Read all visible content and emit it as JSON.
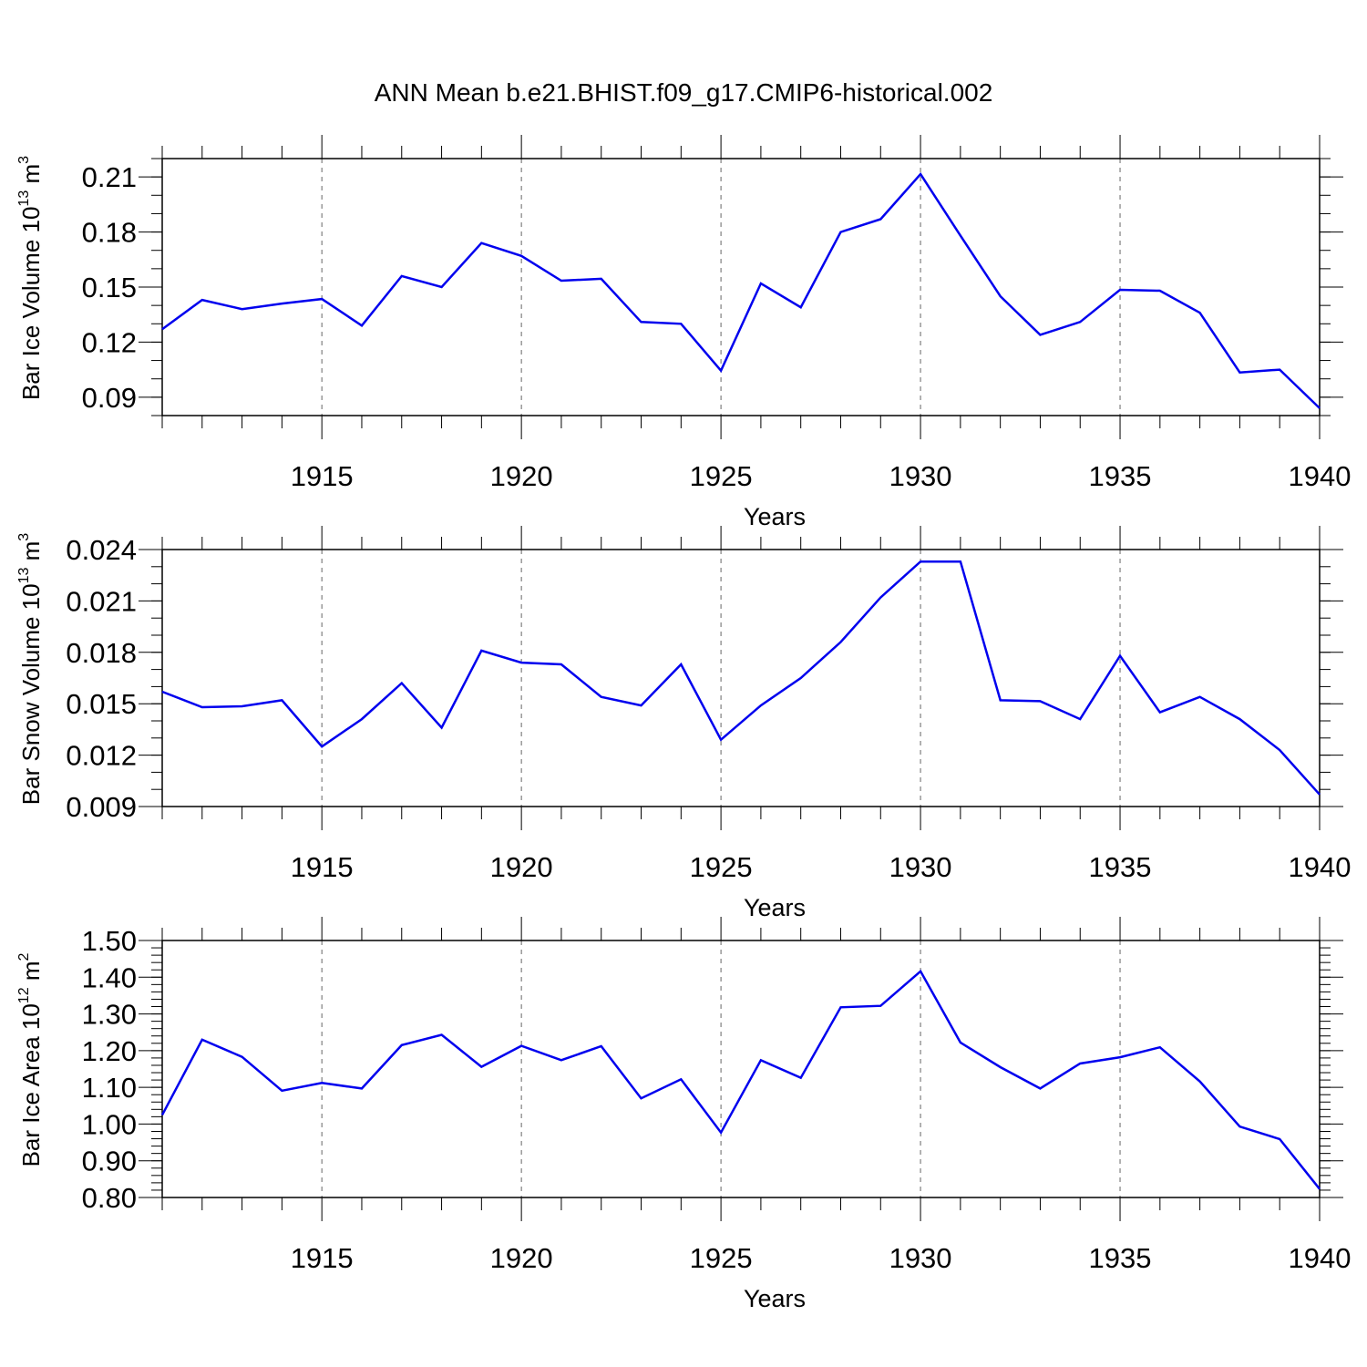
{
  "figure": {
    "title": "ANN Mean b.e21.BHIST.f09_g17.CMIP6-historical.002"
  },
  "chart_data": [
    {
      "type": "line",
      "id": "ice-volume",
      "ylabel": "Bar Ice Volume 10",
      "ylabel_exp": "13",
      "ylabel_unit": " m",
      "ylabel_unit_exp": "3",
      "xlabel": "Years",
      "xlim": [
        1911,
        1940
      ],
      "ylim": [
        0.08,
        0.22
      ],
      "yticks": [
        0.09,
        0.12,
        0.15,
        0.18,
        0.21
      ],
      "ytick_labels": [
        "0.09",
        "0.12",
        "0.15",
        "0.18",
        "0.21"
      ],
      "ytick_minor_step": 0.01,
      "xticks": [
        1915,
        1920,
        1925,
        1930,
        1935,
        1940
      ],
      "xtick_labels": [
        "1915",
        "1920",
        "1925",
        "1930",
        "1935",
        "1940"
      ],
      "grid_x": true,
      "line_color": "#0000ee",
      "x": [
        1911,
        1912,
        1913,
        1914,
        1915,
        1916,
        1917,
        1918,
        1919,
        1920,
        1921,
        1922,
        1923,
        1924,
        1925,
        1926,
        1927,
        1928,
        1929,
        1930,
        1931,
        1932,
        1933,
        1934,
        1935,
        1936,
        1937,
        1938,
        1939,
        1940
      ],
      "y": [
        0.127,
        0.143,
        0.138,
        0.141,
        0.1435,
        0.129,
        0.156,
        0.15,
        0.174,
        0.167,
        0.1535,
        0.1545,
        0.131,
        0.13,
        0.1045,
        0.152,
        0.139,
        0.18,
        0.187,
        0.2115,
        0.178,
        0.145,
        0.124,
        0.131,
        0.1485,
        0.148,
        0.136,
        0.1035,
        0.105,
        0.084
      ]
    },
    {
      "type": "line",
      "id": "snow-volume",
      "ylabel": "Bar Snow Volume 10",
      "ylabel_exp": "13",
      "ylabel_unit": " m",
      "ylabel_unit_exp": "3",
      "xlabel": "Years",
      "xlim": [
        1911,
        1940
      ],
      "ylim": [
        0.009,
        0.024
      ],
      "yticks": [
        0.009,
        0.012,
        0.015,
        0.018,
        0.021,
        0.024
      ],
      "ytick_labels": [
        "0.009",
        "0.012",
        "0.015",
        "0.018",
        "0.021",
        "0.024"
      ],
      "ytick_minor_step": 0.001,
      "xticks": [
        1915,
        1920,
        1925,
        1930,
        1935,
        1940
      ],
      "xtick_labels": [
        "1915",
        "1920",
        "1925",
        "1930",
        "1935",
        "1940"
      ],
      "grid_x": true,
      "line_color": "#0000ee",
      "x": [
        1911,
        1912,
        1913,
        1914,
        1915,
        1916,
        1917,
        1918,
        1919,
        1920,
        1921,
        1922,
        1923,
        1924,
        1925,
        1926,
        1927,
        1928,
        1929,
        1930,
        1931,
        1932,
        1933,
        1934,
        1935,
        1936,
        1937,
        1938,
        1939,
        1940
      ],
      "y": [
        0.0157,
        0.0148,
        0.01485,
        0.0152,
        0.0125,
        0.0141,
        0.0162,
        0.0136,
        0.0181,
        0.0174,
        0.0173,
        0.0154,
        0.0149,
        0.0173,
        0.0129,
        0.0149,
        0.0165,
        0.0186,
        0.0212,
        0.0233,
        0.0233,
        0.0152,
        0.01515,
        0.0141,
        0.0178,
        0.0145,
        0.0154,
        0.0141,
        0.0123,
        0.0097
      ]
    },
    {
      "type": "line",
      "id": "ice-area",
      "ylabel": "Bar Ice Area 10",
      "ylabel_exp": "12",
      "ylabel_unit": " m",
      "ylabel_unit_exp": "2",
      "xlabel": "Years",
      "xlim": [
        1911,
        1940
      ],
      "ylim": [
        0.8,
        1.5
      ],
      "yticks": [
        0.8,
        0.9,
        1.0,
        1.1,
        1.2,
        1.3,
        1.4,
        1.5
      ],
      "ytick_labels": [
        "0.80",
        "0.90",
        "1.00",
        "1.10",
        "1.20",
        "1.30",
        "1.40",
        "1.50"
      ],
      "ytick_minor_step": 0.02,
      "xticks": [
        1915,
        1920,
        1925,
        1930,
        1935,
        1940
      ],
      "xtick_labels": [
        "1915",
        "1920",
        "1925",
        "1930",
        "1935",
        "1940"
      ],
      "grid_x": true,
      "line_color": "#0000ee",
      "x": [
        1911,
        1912,
        1913,
        1914,
        1915,
        1916,
        1917,
        1918,
        1919,
        1920,
        1921,
        1922,
        1923,
        1924,
        1925,
        1926,
        1927,
        1928,
        1929,
        1930,
        1931,
        1932,
        1933,
        1934,
        1935,
        1936,
        1937,
        1938,
        1939,
        1940
      ],
      "y": [
        1.025,
        1.23,
        1.183,
        1.091,
        1.112,
        1.097,
        1.215,
        1.243,
        1.156,
        1.213,
        1.174,
        1.212,
        1.07,
        1.122,
        0.977,
        1.174,
        1.126,
        1.318,
        1.322,
        1.416,
        1.222,
        1.155,
        1.097,
        1.165,
        1.182,
        1.209,
        1.116,
        0.993,
        0.959,
        0.823
      ]
    }
  ]
}
